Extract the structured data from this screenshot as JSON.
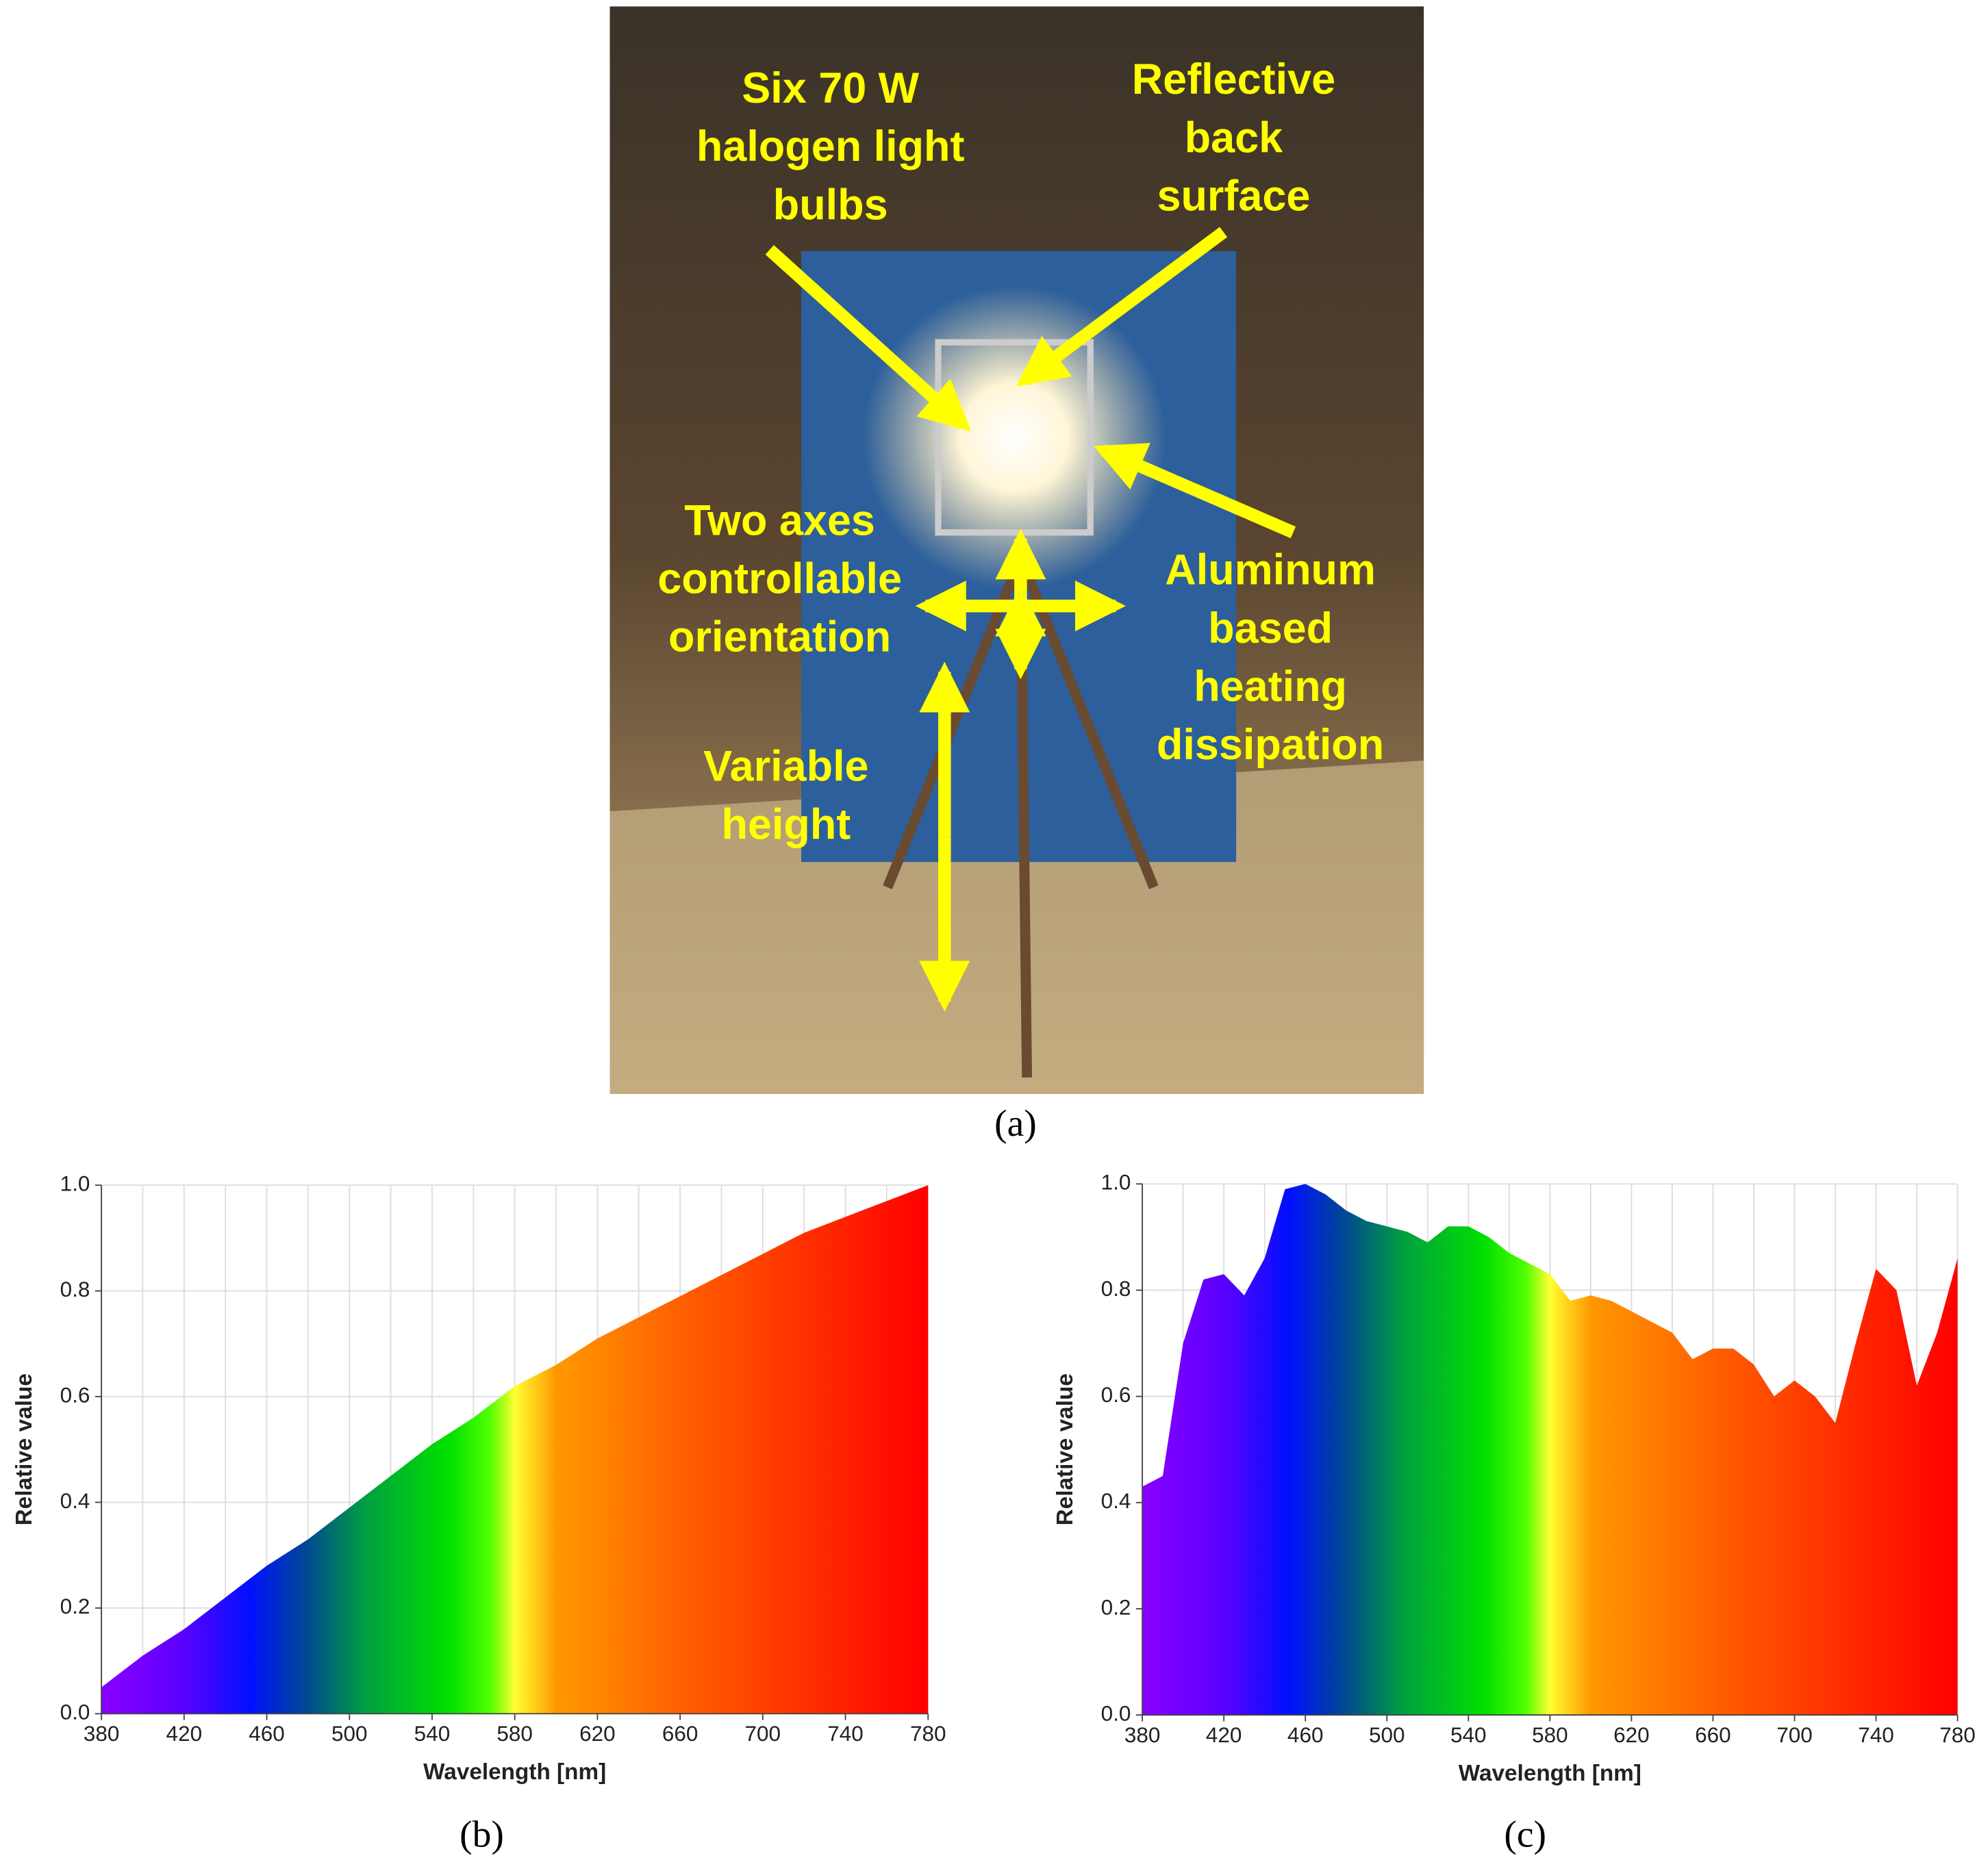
{
  "photo": {
    "labels": [
      [
        "Six 70 W",
        "halogen light",
        "bulbs"
      ],
      [
        "Reflective",
        "back",
        "surface"
      ],
      [
        "Two axes",
        "controllable",
        "orientation"
      ],
      [
        "Aluminum",
        "based",
        "heating",
        "dissipation"
      ],
      [
        "Variable",
        "height"
      ]
    ],
    "caption": "(a)"
  },
  "chart_data": [
    {
      "type": "area",
      "caption": "(b)",
      "xlabel": "Wavelength [nm]",
      "ylabel": "Relative value",
      "xlim": [
        380,
        780
      ],
      "xticks": [
        380,
        420,
        460,
        500,
        540,
        580,
        620,
        660,
        700,
        740,
        780
      ],
      "xgrid": [
        380,
        400,
        420,
        440,
        460,
        480,
        500,
        520,
        540,
        560,
        580,
        600,
        620,
        640,
        660,
        680,
        700,
        720,
        740,
        760,
        780
      ],
      "ylim": [
        0,
        1
      ],
      "yticks": [
        {
          "value": 0,
          "label": "0.0"
        },
        {
          "value": 0.2,
          "label": "0.2"
        },
        {
          "value": 0.4,
          "label": "0.4"
        },
        {
          "value": 0.6,
          "label": "0.6"
        },
        {
          "value": 0.8,
          "label": "0.8"
        },
        {
          "value": 1,
          "label": "1.0"
        }
      ],
      "grid": true,
      "x": [
        380,
        400,
        420,
        440,
        460,
        480,
        500,
        520,
        540,
        560,
        580,
        600,
        620,
        640,
        660,
        680,
        700,
        720,
        740,
        760,
        780
      ],
      "values": [
        0.05,
        0.11,
        0.16,
        0.22,
        0.28,
        0.33,
        0.39,
        0.45,
        0.51,
        0.56,
        0.62,
        0.66,
        0.71,
        0.75,
        0.79,
        0.83,
        0.87,
        0.91,
        0.94,
        0.97,
        1.0
      ]
    },
    {
      "type": "area",
      "caption": "(c)",
      "xlabel": "Wavelength [nm]",
      "ylabel": "Relative value",
      "xlim": [
        380,
        780
      ],
      "xticks": [
        380,
        420,
        460,
        500,
        540,
        580,
        620,
        660,
        700,
        740,
        780
      ],
      "xgrid": [
        380,
        400,
        420,
        440,
        460,
        480,
        500,
        520,
        540,
        560,
        580,
        600,
        620,
        640,
        660,
        680,
        700,
        720,
        740,
        760,
        780
      ],
      "ylim": [
        0,
        1
      ],
      "yticks": [
        {
          "value": 0,
          "label": "0.0"
        },
        {
          "value": 0.2,
          "label": "0.2"
        },
        {
          "value": 0.4,
          "label": "0.4"
        },
        {
          "value": 0.6,
          "label": "0.6"
        },
        {
          "value": 0.8,
          "label": "0.8"
        },
        {
          "value": 1,
          "label": "1.0"
        }
      ],
      "grid": true,
      "x": [
        380,
        390,
        400,
        410,
        420,
        430,
        440,
        450,
        460,
        470,
        480,
        490,
        500,
        510,
        520,
        530,
        540,
        550,
        560,
        570,
        580,
        590,
        600,
        610,
        620,
        630,
        640,
        650,
        660,
        670,
        680,
        690,
        700,
        710,
        720,
        730,
        740,
        750,
        760,
        770,
        780
      ],
      "values": [
        0.43,
        0.45,
        0.7,
        0.82,
        0.83,
        0.79,
        0.86,
        0.99,
        1.0,
        0.98,
        0.95,
        0.93,
        0.92,
        0.91,
        0.89,
        0.92,
        0.92,
        0.9,
        0.87,
        0.85,
        0.83,
        0.78,
        0.79,
        0.78,
        0.76,
        0.74,
        0.72,
        0.67,
        0.69,
        0.69,
        0.66,
        0.6,
        0.63,
        0.6,
        0.55,
        0.7,
        0.84,
        0.8,
        0.62,
        0.72,
        0.86
      ]
    }
  ]
}
